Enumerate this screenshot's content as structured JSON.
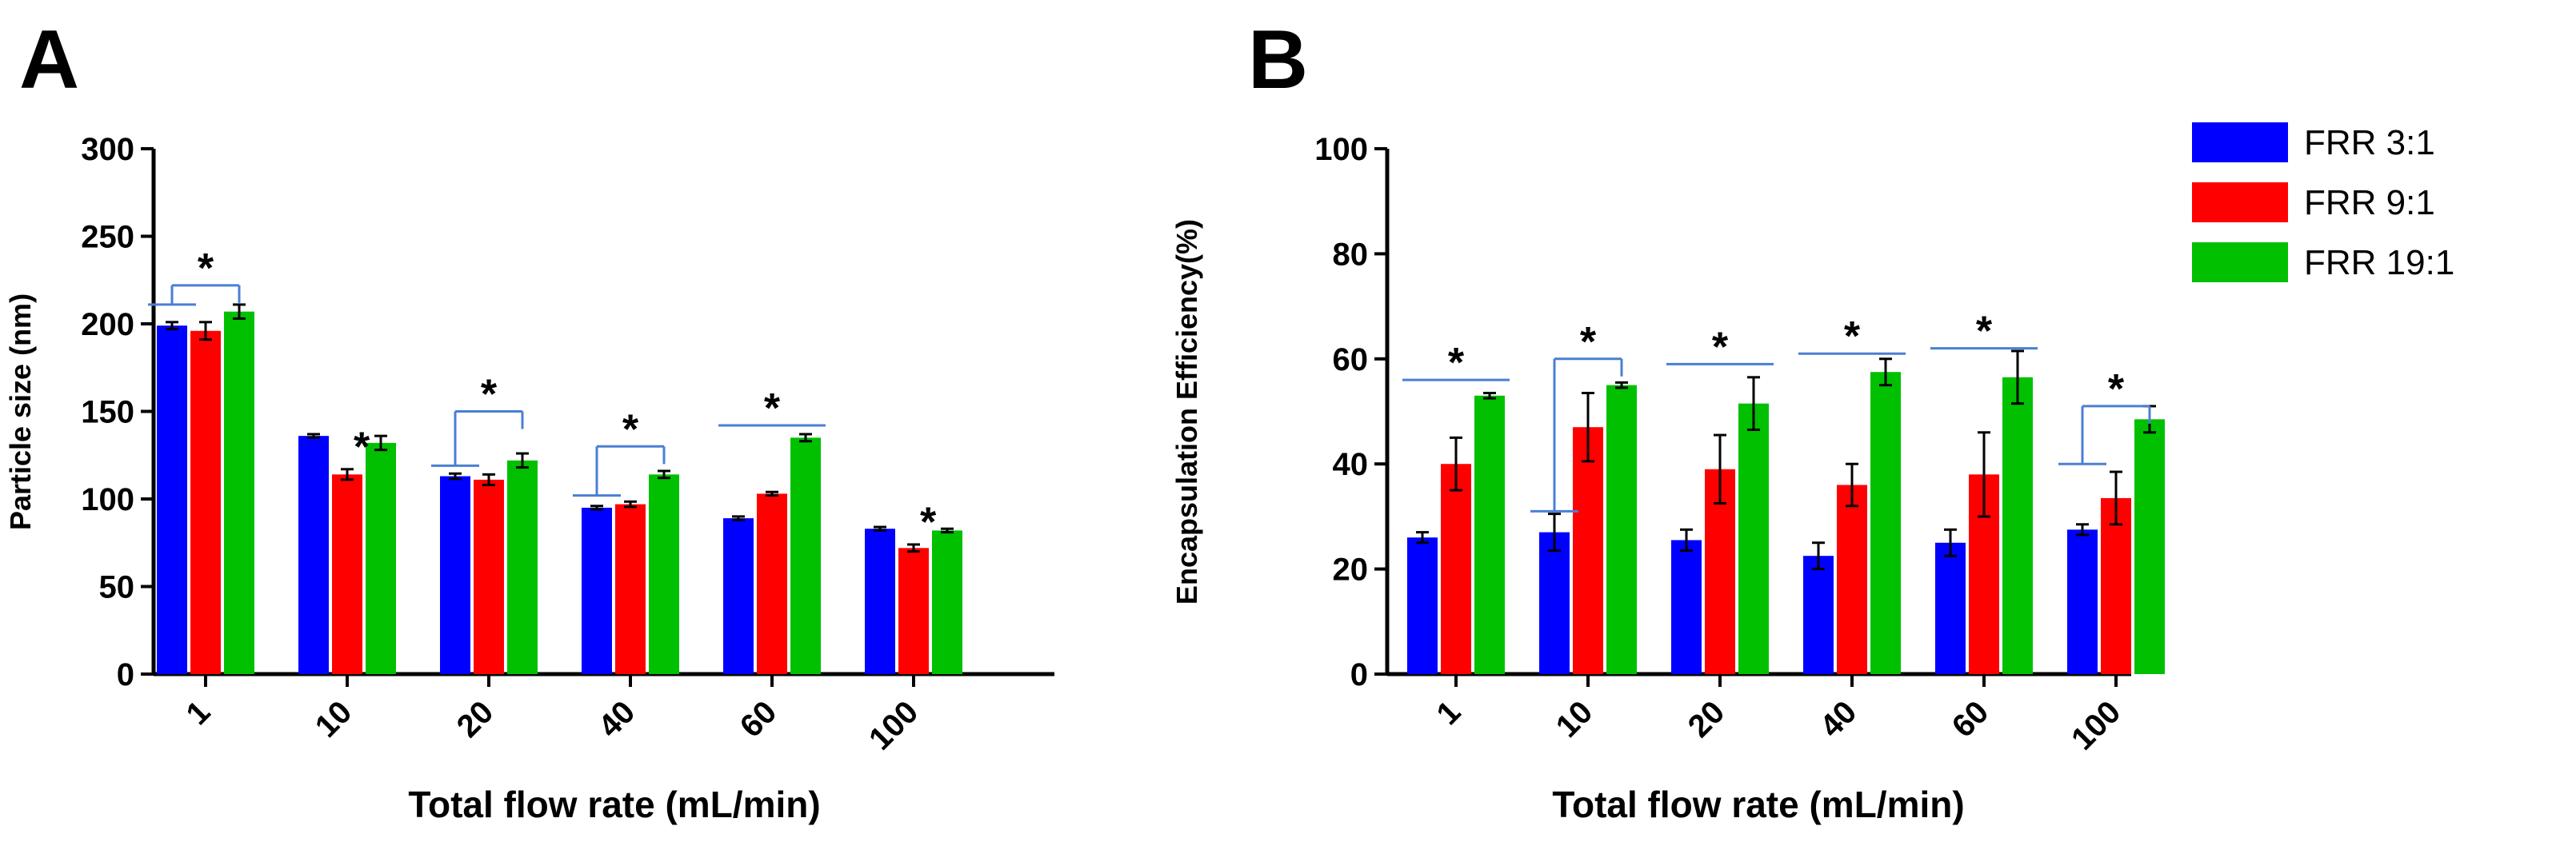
{
  "chart_data": [
    {
      "panel": "A",
      "type": "bar",
      "title": "",
      "xlabel": "Total flow rate (mL/min)",
      "ylabel": "Particle size (nm)",
      "ylim": [
        0,
        300
      ],
      "yticks": [
        0,
        50,
        100,
        150,
        200,
        250,
        300
      ],
      "categories": [
        "1",
        "10",
        "20",
        "40",
        "60",
        "100"
      ],
      "series": [
        {
          "name": "FRR 3:1",
          "color": "#0000ff",
          "values": [
            199,
            136,
            113,
            95,
            89,
            83
          ],
          "errors": [
            2,
            1,
            1.5,
            1,
            1,
            1
          ]
        },
        {
          "name": "FRR 9:1",
          "color": "#ff0000",
          "values": [
            196,
            114,
            111,
            97,
            103,
            72
          ],
          "errors": [
            5,
            3,
            3,
            1.5,
            1,
            2
          ]
        },
        {
          "name": "FRR 19:1",
          "color": "#00c000",
          "values": [
            207,
            132,
            122,
            114,
            135,
            82
          ],
          "errors": [
            4,
            4,
            4,
            2,
            2,
            1
          ]
        }
      ],
      "significance": [
        {
          "group": 0,
          "type": "bracket",
          "from": 0,
          "to": 2,
          "base_y": 211,
          "top_y": 222,
          "label": "*"
        },
        {
          "group": 1,
          "type": "star",
          "series": 1,
          "y": 119,
          "label": "*"
        },
        {
          "group": 2,
          "type": "bracket",
          "from": 0,
          "to": 2,
          "base_y": 119,
          "top_y": 150,
          "label": "*"
        },
        {
          "group": 3,
          "type": "bracket",
          "from": 0,
          "to": 2,
          "base_y": 102,
          "top_y": 130,
          "label": "*"
        },
        {
          "group": 4,
          "type": "line",
          "from": 0,
          "to": 2,
          "y": 142,
          "label": "*"
        },
        {
          "group": 5,
          "type": "star",
          "series": 1,
          "y": 76,
          "label": "*"
        }
      ]
    },
    {
      "panel": "B",
      "type": "bar",
      "title": "",
      "xlabel": "Total flow rate (mL/min)",
      "ylabel": "Encapsulation Efficiency(%)",
      "ylim": [
        0,
        100
      ],
      "yticks": [
        0,
        20,
        40,
        60,
        80,
        100
      ],
      "categories": [
        "1",
        "10",
        "20",
        "40",
        "60",
        "100"
      ],
      "series": [
        {
          "name": "FRR 3:1",
          "color": "#0000ff",
          "values": [
            26,
            27,
            25.5,
            22.5,
            25,
            27.5
          ],
          "errors": [
            1,
            3.5,
            2,
            2.5,
            2.5,
            1
          ]
        },
        {
          "name": "FRR 9:1",
          "color": "#ff0000",
          "values": [
            40,
            47,
            39,
            36,
            38,
            33.5
          ],
          "errors": [
            5,
            6.5,
            6.5,
            4,
            8,
            5
          ]
        },
        {
          "name": "FRR 19:1",
          "color": "#00c000",
          "values": [
            53,
            55,
            51.5,
            57.5,
            56.5,
            48.5
          ],
          "errors": [
            0.5,
            0.5,
            5,
            2.5,
            5,
            2.5
          ]
        }
      ],
      "significance": [
        {
          "group": 0,
          "type": "line",
          "from": 0,
          "to": 2,
          "y": 56,
          "label": "*"
        },
        {
          "group": 1,
          "type": "bracket",
          "from": 0,
          "to": 2,
          "base_y": 31,
          "top_y": 60,
          "label": "*"
        },
        {
          "group": 2,
          "type": "line",
          "from": 0,
          "to": 2,
          "y": 59,
          "label": "*"
        },
        {
          "group": 3,
          "type": "line",
          "from": 0,
          "to": 2,
          "y": 61,
          "label": "*"
        },
        {
          "group": 4,
          "type": "line",
          "from": 0,
          "to": 2,
          "y": 62,
          "label": "*"
        },
        {
          "group": 5,
          "type": "bracket",
          "from": 0,
          "to": 2,
          "base_y": 40,
          "top_y": 51,
          "label": "*"
        }
      ]
    }
  ],
  "legend": {
    "position": "right",
    "items": [
      {
        "label": "FRR 3:1",
        "color": "#0000ff"
      },
      {
        "label": "FRR 9:1",
        "color": "#ff0000"
      },
      {
        "label": "FRR 19:1",
        "color": "#00c000"
      }
    ]
  },
  "colors": {
    "bracket": "#4a7fd4",
    "axis": "#000000"
  }
}
